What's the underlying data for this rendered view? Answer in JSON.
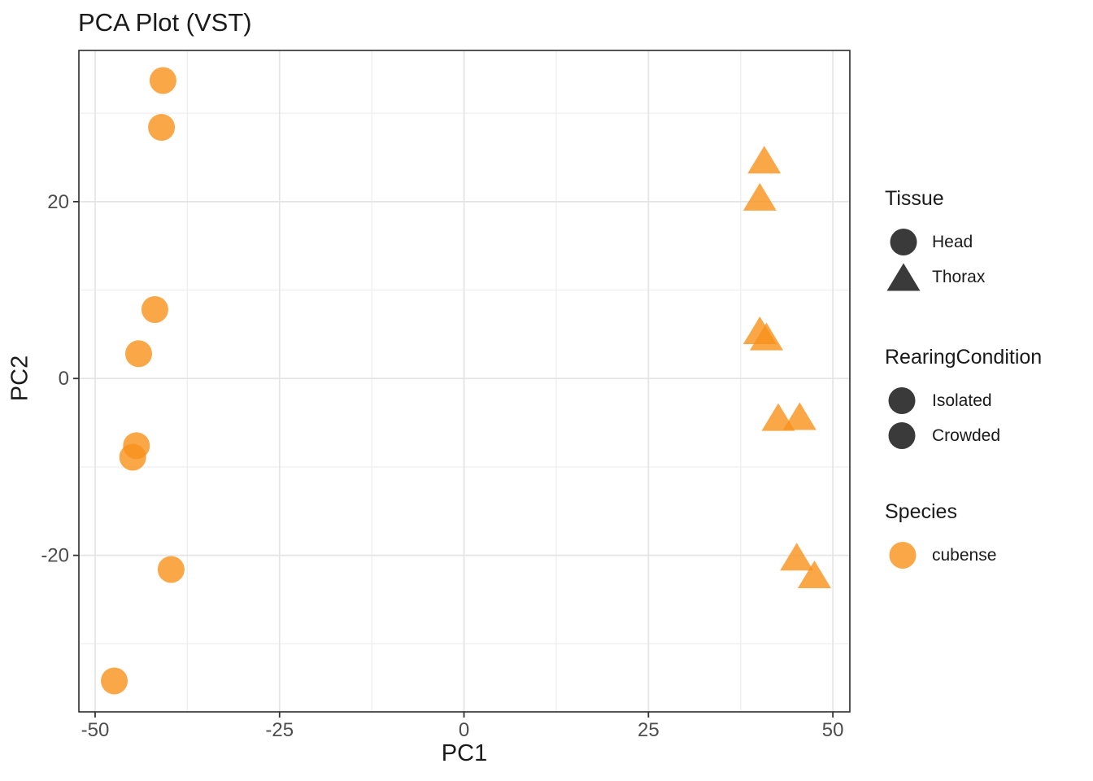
{
  "chart_data": {
    "type": "scatter",
    "title": "PCA Plot (VST)",
    "xlabel": "PC1",
    "ylabel": "PC2",
    "xlim": [
      -52.2,
      52.3
    ],
    "ylim": [
      -37.7,
      37.1
    ],
    "x_ticks": [
      -50,
      -25,
      0,
      25,
      50
    ],
    "x_minor_ticks": [
      -37.5,
      -12.5,
      12.5,
      37.5
    ],
    "y_ticks": [
      -20,
      0,
      20
    ],
    "y_minor_ticks": [
      -30,
      -10,
      10,
      30
    ],
    "grid": "major+minor",
    "legend_position": "right",
    "point_color": "#F9911A",
    "point_opacity": 0.8,
    "series": [
      {
        "name": "Head",
        "marker": "circle",
        "points": [
          [
            -40.8,
            33.7
          ],
          [
            -41.0,
            28.4
          ],
          [
            -41.9,
            7.8
          ],
          [
            -44.1,
            2.8
          ],
          [
            -44.4,
            -7.6
          ],
          [
            -44.9,
            -8.9
          ],
          [
            -39.7,
            -21.6
          ],
          [
            -47.4,
            -34.2
          ]
        ]
      },
      {
        "name": "Thorax",
        "marker": "triangle",
        "points": [
          [
            40.7,
            24.7
          ],
          [
            40.1,
            20.5
          ],
          [
            40.1,
            5.4
          ],
          [
            41.0,
            4.7
          ],
          [
            42.6,
            -4.4
          ],
          [
            45.5,
            -4.3
          ],
          [
            45.1,
            -20.2
          ],
          [
            47.5,
            -22.2
          ]
        ]
      }
    ]
  },
  "legend": {
    "tissue": {
      "title": "Tissue",
      "items": [
        {
          "label": "Head",
          "marker": "circle",
          "color": "#3A3A3A"
        },
        {
          "label": "Thorax",
          "marker": "triangle",
          "color": "#3A3A3A"
        }
      ]
    },
    "rearing_condition": {
      "title": "RearingCondition",
      "items": [
        {
          "label": "Isolated",
          "marker": "circle",
          "color": "#3A3A3A"
        },
        {
          "label": "Crowded",
          "marker": "circle",
          "color": "#3A3A3A"
        }
      ]
    },
    "species": {
      "title": "Species",
      "items": [
        {
          "label": "cubense",
          "marker": "circle",
          "color": "#F9911A"
        }
      ]
    }
  },
  "colors": {
    "point_orange": "#F9911A",
    "legend_dark": "#3A3A3A",
    "grid_major": "#E4E4E4",
    "grid_minor": "#EDEDED",
    "panel_border": "#2B2B2B",
    "tick_mark": "#333333",
    "tick_label": "#4D4D4D",
    "text": "#1A1A1A",
    "background": "#FFFFFF"
  }
}
